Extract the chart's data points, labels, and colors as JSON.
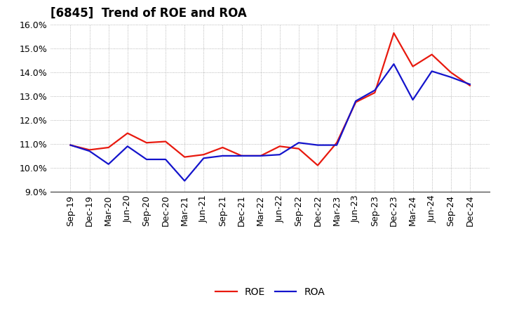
{
  "title": "[6845]  Trend of ROE and ROA",
  "x_labels": [
    "Sep-19",
    "Dec-19",
    "Mar-20",
    "Jun-20",
    "Sep-20",
    "Dec-20",
    "Mar-21",
    "Jun-21",
    "Sep-21",
    "Dec-21",
    "Mar-22",
    "Jun-22",
    "Sep-22",
    "Dec-22",
    "Mar-23",
    "Jun-23",
    "Sep-23",
    "Dec-23",
    "Mar-24",
    "Jun-24",
    "Sep-24",
    "Dec-24"
  ],
  "roe": [
    10.95,
    10.75,
    10.85,
    11.45,
    11.05,
    11.1,
    10.45,
    10.55,
    10.85,
    10.5,
    10.5,
    10.9,
    10.8,
    10.1,
    11.05,
    12.75,
    13.15,
    15.65,
    14.25,
    14.75,
    14.0,
    13.45
  ],
  "roa": [
    10.95,
    10.7,
    10.15,
    10.9,
    10.35,
    10.35,
    9.45,
    10.4,
    10.5,
    10.5,
    10.5,
    10.55,
    11.05,
    10.95,
    10.95,
    12.8,
    13.25,
    14.35,
    12.85,
    14.05,
    13.8,
    13.5
  ],
  "roe_color": "#e8190e",
  "roa_color": "#1414cc",
  "background_color": "#ffffff",
  "grid_color": "#999999",
  "ylim_min": 9.0,
  "ylim_max": 16.0,
  "yticks": [
    9.0,
    10.0,
    11.0,
    12.0,
    13.0,
    14.0,
    15.0,
    16.0
  ],
  "legend_roe": "ROE",
  "legend_roa": "ROA",
  "line_width": 1.6,
  "title_fontsize": 12,
  "tick_fontsize": 9,
  "legend_fontsize": 10
}
